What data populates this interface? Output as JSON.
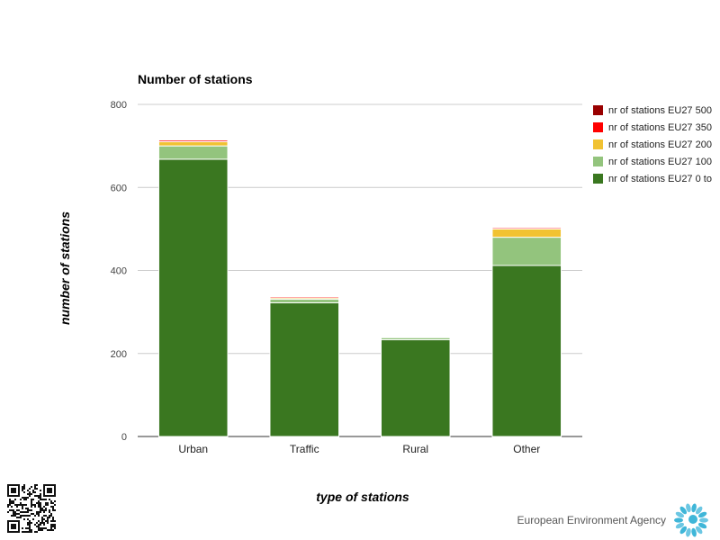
{
  "chart_data": {
    "type": "bar",
    "stacked": true,
    "title": "Number of stations",
    "xlabel": "type of stations",
    "ylabel": "number of stations",
    "categories": [
      "Urban",
      "Traffic",
      "Rural",
      "Other"
    ],
    "ylim": [
      0,
      800
    ],
    "yticks": [
      0,
      200,
      400,
      600,
      800
    ],
    "grid": true,
    "legend_position": "right",
    "series": [
      {
        "name": "nr of stations EU27 0 to",
        "color": "#3a7720",
        "values": [
          668,
          322,
          233,
          412
        ]
      },
      {
        "name": "nr of stations EU27 100",
        "color": "#93c47d",
        "values": [
          32,
          9,
          5,
          68
        ]
      },
      {
        "name": "nr of stations EU27 200",
        "color": "#f1c232",
        "values": [
          10,
          3,
          0,
          20
        ]
      },
      {
        "name": "nr of stations EU27 350",
        "color": "#ff0000",
        "values": [
          4,
          3,
          0,
          3
        ]
      },
      {
        "name": "nr of stations EU27 500",
        "color": "#990000",
        "values": [
          2,
          1,
          0,
          1
        ]
      }
    ]
  },
  "legend": {
    "items": [
      {
        "label": "nr of stations EU27 500",
        "color": "#990000"
      },
      {
        "label": "nr of stations EU27 350",
        "color": "#ff0000"
      },
      {
        "label": "nr of stations EU27 200",
        "color": "#f1c232"
      },
      {
        "label": "nr of stations EU27 100",
        "color": "#93c47d"
      },
      {
        "label": "nr of stations EU27 0 to",
        "color": "#3a7720"
      }
    ]
  },
  "footer": {
    "agency": "European Environment Agency",
    "qr_icon": "qr-code-icon",
    "logo_icon": "eea-logo-icon"
  }
}
